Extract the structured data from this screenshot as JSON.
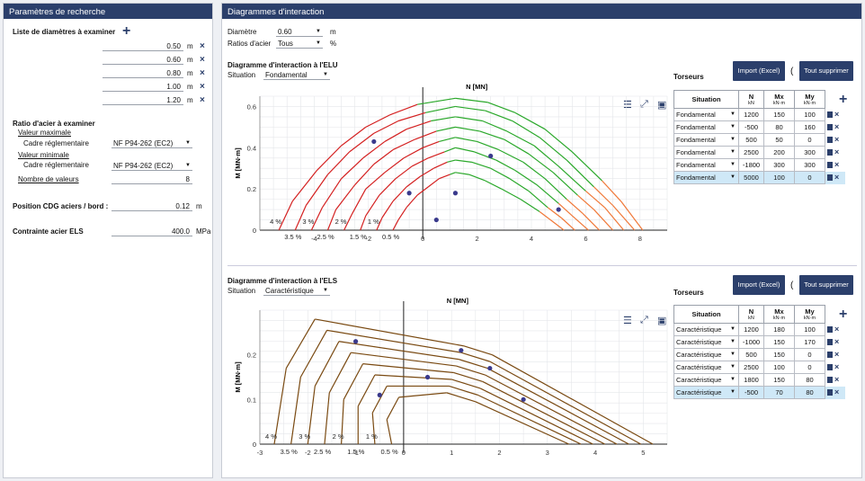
{
  "left_panel": {
    "title": "Paramètres de recherche",
    "diam_list_label": "Liste de diamètres à examiner",
    "diameters": [
      "0.50",
      "0.60",
      "0.80",
      "1.00",
      "1.20"
    ],
    "diam_unit": "m",
    "ratio_label": "Ratio d'acier à examiner",
    "max_label": "Valeur maximale",
    "max_cadre_label": "Cadre réglementaire",
    "max_cadre_value": "NF P94-262 (EC2)",
    "min_label": "Valeur minimale",
    "min_cadre_label": "Cadre réglementaire",
    "min_cadre_value": "NF P94-262 (EC2)",
    "nb_values_label": "Nombre de valeurs",
    "nb_values": "8",
    "cdg_label": "Position CDG aciers / bord :",
    "cdg_value": "0.12",
    "cdg_unit": "m",
    "els_label": "Contrainte acier ELS",
    "els_value": "400.0",
    "els_unit": "MPa"
  },
  "right_panel": {
    "title": "Diagrammes d'interaction",
    "diam_label": "Diamètre",
    "diam_value": "0.60",
    "diam_unit": "m",
    "ratio_label": "Ratios d'acier",
    "ratio_value": "Tous",
    "ratio_unit": "%"
  },
  "elu": {
    "title": "Diagramme d'interaction à l'ELU",
    "situation_label": "Situation",
    "situation_value": "Fondamental",
    "xlabel": "N [MN]",
    "ylabel": "M [MN·m]",
    "torseurs_label": "Torseurs",
    "import_label": "Import (Excel)",
    "delete_all_label": "Tout supprimer",
    "headers": {
      "situation": "Situation",
      "n": "N",
      "n_unit": "kN",
      "mx": "Mx",
      "mx_unit": "kN·m",
      "my": "My",
      "my_unit": "kN·m"
    },
    "rows": [
      {
        "situation": "Fondamental",
        "n": "1200",
        "mx": "150",
        "my": "100"
      },
      {
        "situation": "Fondamental",
        "n": "-500",
        "mx": "80",
        "my": "160"
      },
      {
        "situation": "Fondamental",
        "n": "500",
        "mx": "50",
        "my": "0"
      },
      {
        "situation": "Fondamental",
        "n": "2500",
        "mx": "200",
        "my": "300"
      },
      {
        "situation": "Fondamental",
        "n": "-1800",
        "mx": "300",
        "my": "300"
      },
      {
        "situation": "Fondamental",
        "n": "5000",
        "mx": "100",
        "my": "0"
      }
    ]
  },
  "els": {
    "title": "Diagramme d'interaction à l'ELS",
    "situation_label": "Situation",
    "situation_value": "Caractéristique",
    "xlabel": "N [MN]",
    "ylabel": "M [MN·m]",
    "torseurs_label": "Torseurs",
    "import_label": "Import (Excel)",
    "delete_all_label": "Tout supprimer",
    "headers": {
      "situation": "Situation",
      "n": "N",
      "n_unit": "kN",
      "mx": "Mx",
      "mx_unit": "kN·m",
      "my": "My",
      "my_unit": "kN·m"
    },
    "rows": [
      {
        "situation": "Caractéristique",
        "n": "1200",
        "mx": "180",
        "my": "100"
      },
      {
        "situation": "Caractéristique",
        "n": "-1000",
        "mx": "150",
        "my": "170"
      },
      {
        "situation": "Caractéristique",
        "n": "500",
        "mx": "150",
        "my": "0"
      },
      {
        "situation": "Caractéristique",
        "n": "2500",
        "mx": "100",
        "my": "0"
      },
      {
        "situation": "Caractéristique",
        "n": "1800",
        "mx": "150",
        "my": "80"
      },
      {
        "situation": "Caractéristique",
        "n": "-500",
        "mx": "70",
        "my": "80"
      }
    ]
  },
  "colors": {
    "header": "#2b3f6b",
    "red": "#d42020",
    "green": "#2aa82a",
    "orange": "#f07838",
    "brown": "#7a4a12",
    "point": "#3a3a8c"
  },
  "chart_data": [
    {
      "type": "line",
      "title": "Diagramme d'interaction à l'ELU",
      "xlabel": "N [MN]",
      "ylabel": "M [MN·m]",
      "xlim": [
        -6,
        9
      ],
      "ylim": [
        0,
        0.65
      ],
      "xticks": [
        -4,
        -2,
        0,
        2,
        4,
        6,
        8
      ],
      "yticks": [
        0,
        0.2,
        0.4,
        0.6
      ],
      "grid": true,
      "ratio_labels": [
        "4 %",
        "3.5 %",
        "3 %",
        "2.5 %",
        "2 %",
        "1.5 %",
        "1 %",
        "0.5 %"
      ],
      "series": [
        {
          "name": "4 %",
          "x": [
            -5.3,
            -4.8,
            -3.9,
            -3.0,
            -2.1,
            -1.2,
            -0.2,
            1.2,
            2.4,
            3.4,
            4.5,
            5.5,
            6.6,
            7.3,
            8.1
          ],
          "y": [
            0,
            0.14,
            0.29,
            0.41,
            0.5,
            0.56,
            0.61,
            0.64,
            0.62,
            0.57,
            0.49,
            0.38,
            0.24,
            0.14,
            0
          ]
        },
        {
          "name": "3.5 %",
          "x": [
            -4.7,
            -4.3,
            -3.5,
            -2.7,
            -1.8,
            -0.9,
            0.1,
            1.2,
            2.3,
            3.3,
            4.3,
            5.3,
            6.3,
            7.0,
            7.8
          ],
          "y": [
            0,
            0.12,
            0.27,
            0.38,
            0.47,
            0.53,
            0.57,
            0.6,
            0.58,
            0.53,
            0.45,
            0.34,
            0.21,
            0.12,
            0
          ]
        },
        {
          "name": "3 %",
          "x": [
            -4.1,
            -3.7,
            -3.0,
            -2.2,
            -1.4,
            -0.6,
            0.3,
            1.2,
            2.2,
            3.1,
            4.1,
            5.0,
            6.0,
            6.7,
            7.4
          ],
          "y": [
            0,
            0.11,
            0.25,
            0.35,
            0.43,
            0.49,
            0.53,
            0.55,
            0.53,
            0.48,
            0.41,
            0.31,
            0.19,
            0.11,
            0
          ]
        },
        {
          "name": "2.5 %",
          "x": [
            -3.5,
            -3.2,
            -2.5,
            -1.8,
            -1.1,
            -0.3,
            0.5,
            1.2,
            2.1,
            3.0,
            3.9,
            4.8,
            5.7,
            6.3,
            7.0
          ],
          "y": [
            0,
            0.1,
            0.22,
            0.32,
            0.39,
            0.44,
            0.48,
            0.5,
            0.48,
            0.44,
            0.37,
            0.28,
            0.17,
            0.1,
            0
          ]
        },
        {
          "name": "2 %",
          "x": [
            -2.9,
            -2.6,
            -2.1,
            -1.4,
            -0.7,
            0.0,
            0.6,
            1.2,
            2.0,
            2.8,
            3.7,
            4.5,
            5.3,
            5.9,
            6.5
          ],
          "y": [
            0,
            0.08,
            0.2,
            0.28,
            0.35,
            0.4,
            0.43,
            0.45,
            0.43,
            0.39,
            0.33,
            0.25,
            0.15,
            0.08,
            0
          ]
        },
        {
          "name": "1.5 %",
          "x": [
            -2.3,
            -2.1,
            -1.6,
            -1.0,
            -0.4,
            0.2,
            0.8,
            1.2,
            1.9,
            2.7,
            3.4,
            4.2,
            5.0,
            5.5,
            6.1
          ],
          "y": [
            0,
            0.07,
            0.17,
            0.25,
            0.31,
            0.35,
            0.38,
            0.4,
            0.38,
            0.34,
            0.29,
            0.22,
            0.13,
            0.07,
            0
          ]
        },
        {
          "name": "1 %",
          "x": [
            -1.7,
            -1.5,
            -1.1,
            -0.6,
            -0.1,
            0.4,
            0.9,
            1.2,
            1.8,
            2.5,
            3.2,
            3.9,
            4.6,
            5.1,
            5.6
          ],
          "y": [
            0,
            0.06,
            0.14,
            0.21,
            0.26,
            0.3,
            0.33,
            0.34,
            0.33,
            0.3,
            0.25,
            0.19,
            0.11,
            0.06,
            0
          ]
        },
        {
          "name": "0.5 %",
          "x": [
            -1.1,
            -0.9,
            -0.6,
            -0.2,
            0.2,
            0.6,
            1.0,
            1.2,
            1.7,
            2.3,
            2.9,
            3.6,
            4.3,
            4.7,
            5.2
          ],
          "y": [
            0,
            0.05,
            0.11,
            0.17,
            0.21,
            0.25,
            0.27,
            0.28,
            0.27,
            0.24,
            0.2,
            0.15,
            0.09,
            0.05,
            0
          ]
        }
      ],
      "points": {
        "x": [
          -1.8,
          -0.5,
          0.5,
          1.2,
          2.5,
          5.0
        ],
        "y": [
          0.43,
          0.18,
          0.05,
          0.18,
          0.36,
          0.1
        ]
      }
    },
    {
      "type": "line",
      "title": "Diagramme d'interaction à l'ELS",
      "xlabel": "N [MN]",
      "ylabel": "M [MN·m]",
      "xlim": [
        -3,
        5.5
      ],
      "ylim": [
        0,
        0.3
      ],
      "xticks": [
        -3,
        -2,
        -1,
        0,
        1,
        2,
        3,
        4,
        5
      ],
      "yticks": [
        0,
        0.1,
        0.2
      ],
      "grid": true,
      "ratio_labels": [
        "4 %",
        "3.5 %",
        "3 %",
        "2.5 %",
        "2 %",
        "1.5 %",
        "1 %",
        "0.5 %"
      ],
      "series": [
        {
          "name": "4 %",
          "x": [
            -2.7,
            -2.45,
            -1.85,
            1.25,
            1.85,
            5.2
          ],
          "y": [
            0,
            0.17,
            0.28,
            0.22,
            0.2,
            0
          ]
        },
        {
          "name": "3.5 %",
          "x": [
            -2.35,
            -2.15,
            -1.6,
            1.2,
            1.8,
            4.95
          ],
          "y": [
            0,
            0.15,
            0.255,
            0.205,
            0.185,
            0
          ]
        },
        {
          "name": "3 %",
          "x": [
            -2.0,
            -1.85,
            -1.35,
            1.15,
            1.75,
            4.7
          ],
          "y": [
            0,
            0.13,
            0.23,
            0.19,
            0.17,
            0
          ]
        },
        {
          "name": "2.5 %",
          "x": [
            -1.65,
            -1.55,
            -1.1,
            1.1,
            1.7,
            4.45
          ],
          "y": [
            0,
            0.115,
            0.205,
            0.175,
            0.155,
            0
          ]
        },
        {
          "name": "2 %",
          "x": [
            -1.3,
            -1.25,
            -0.85,
            1.05,
            1.65,
            4.2
          ],
          "y": [
            0,
            0.1,
            0.18,
            0.16,
            0.14,
            0
          ]
        },
        {
          "name": "1.5 %",
          "x": [
            -0.95,
            -0.95,
            -0.6,
            1.0,
            1.6,
            3.95
          ],
          "y": [
            0,
            0.085,
            0.155,
            0.145,
            0.125,
            0
          ]
        },
        {
          "name": "1 %",
          "x": [
            -0.6,
            -0.65,
            -0.35,
            0.95,
            1.55,
            3.7
          ],
          "y": [
            0,
            0.07,
            0.13,
            0.13,
            0.11,
            0
          ]
        },
        {
          "name": "0.5 %",
          "x": [
            -0.25,
            -0.35,
            -0.1,
            0.9,
            1.5,
            3.45
          ],
          "y": [
            0,
            0.055,
            0.105,
            0.115,
            0.095,
            0
          ]
        }
      ],
      "points": {
        "x": [
          -1.0,
          -0.5,
          0.5,
          1.2,
          1.8,
          2.5
        ],
        "y": [
          0.23,
          0.11,
          0.15,
          0.21,
          0.17,
          0.1
        ]
      }
    }
  ]
}
